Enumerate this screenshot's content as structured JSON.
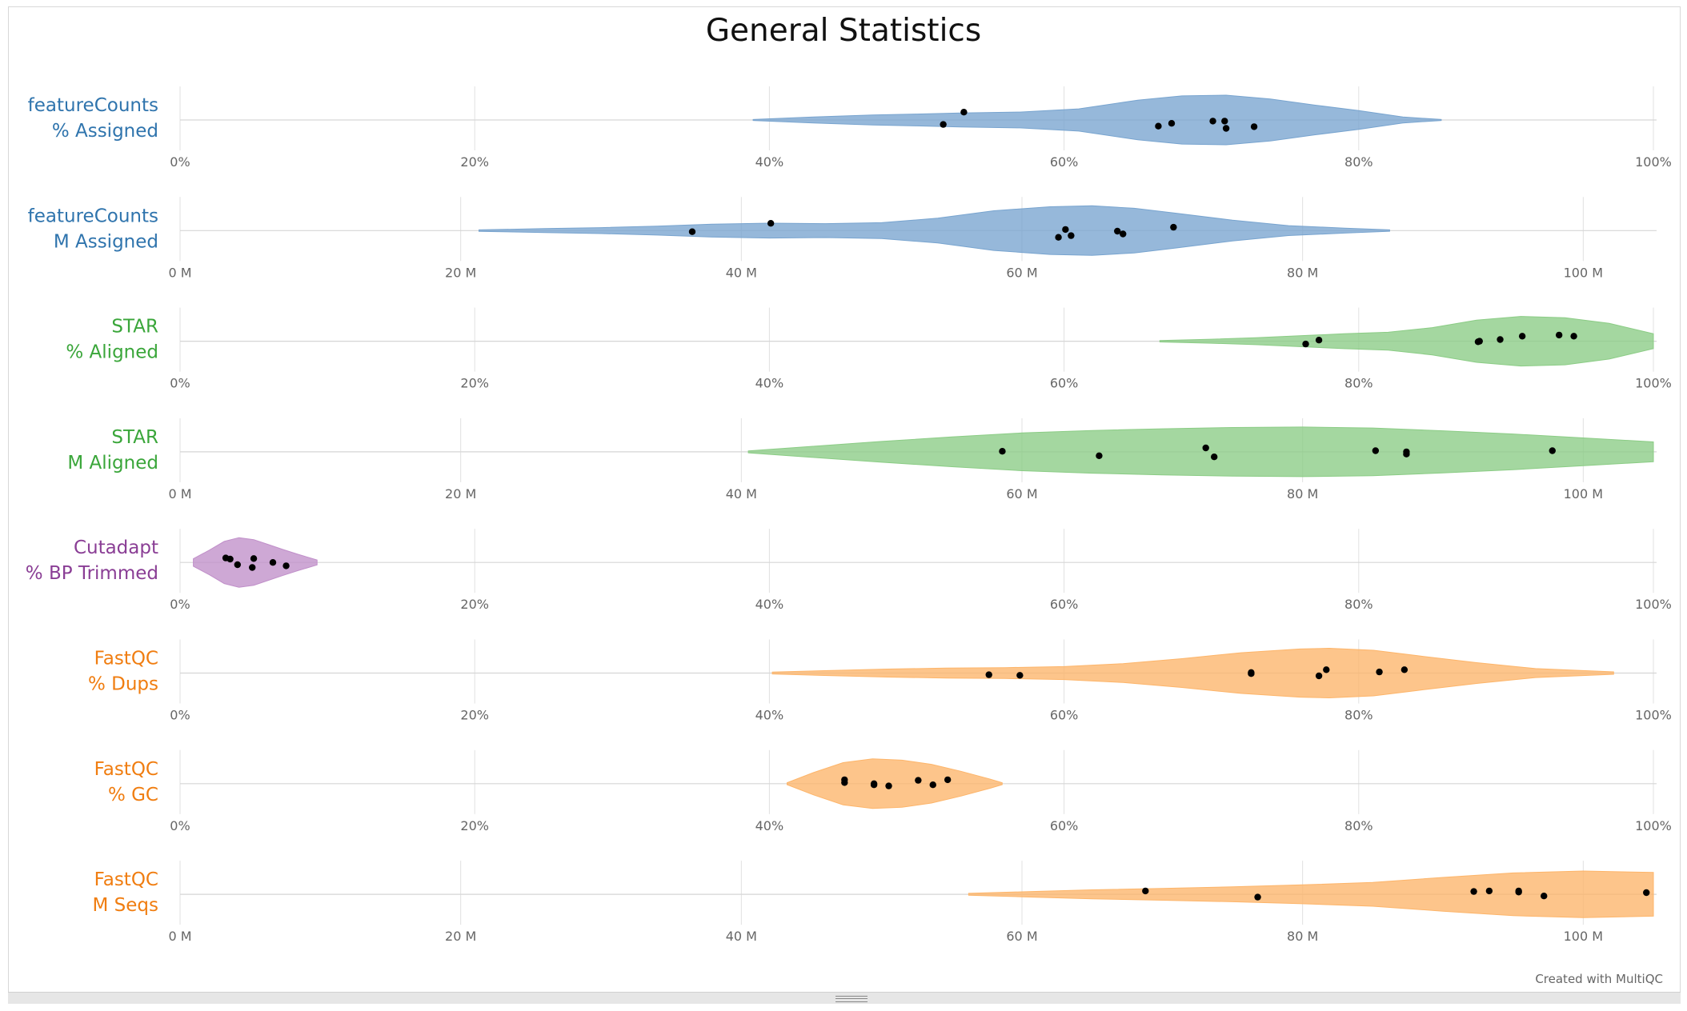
{
  "title": "General Statistics",
  "credit": "Created with MultiQC",
  "chart_data": {
    "type": "violin",
    "title": "General Statistics",
    "rows": [
      {
        "label_line1": "featureCounts",
        "label_line2": "% Assigned",
        "color": "#78a4cf",
        "label_color": "#2f74ad",
        "xlim": [
          0,
          100
        ],
        "tick_values": [
          0,
          20,
          40,
          60,
          80,
          100
        ],
        "tick_labels": [
          "0%",
          "20%",
          "40%",
          "60%",
          "80%",
          "100%"
        ],
        "violin_range": [
          38.9,
          85.6
        ],
        "density": [
          [
            38.9,
            0.02
          ],
          [
            43,
            0.12
          ],
          [
            47,
            0.2
          ],
          [
            50,
            0.24
          ],
          [
            53,
            0.28
          ],
          [
            57,
            0.32
          ],
          [
            61,
            0.45
          ],
          [
            65,
            0.8
          ],
          [
            68,
            0.97
          ],
          [
            71,
            1.0
          ],
          [
            74,
            0.85
          ],
          [
            77,
            0.6
          ],
          [
            80,
            0.38
          ],
          [
            83,
            0.12
          ],
          [
            85.6,
            0.02
          ]
        ],
        "points": [
          [
            51.8,
            -0.4
          ],
          [
            53.2,
            0.7
          ],
          [
            66.4,
            -0.55
          ],
          [
            67.3,
            -0.3
          ],
          [
            70.1,
            -0.1
          ],
          [
            70.9,
            -0.1
          ],
          [
            71,
            -0.75
          ],
          [
            72.9,
            -0.6
          ]
        ]
      },
      {
        "label_line1": "featureCounts",
        "label_line2": "M Assigned",
        "color": "#78a4cf",
        "label_color": "#2f74ad",
        "xlim": [
          0,
          105
        ],
        "tick_values": [
          0,
          20,
          40,
          60,
          80,
          100
        ],
        "tick_labels": [
          "0 M",
          "20 M",
          "40 M",
          "60 M",
          "80 M",
          "100 M"
        ],
        "violin_range": [
          21.3,
          86.2
        ],
        "density": [
          [
            21.3,
            0.03
          ],
          [
            26,
            0.08
          ],
          [
            30,
            0.12
          ],
          [
            34,
            0.18
          ],
          [
            38,
            0.26
          ],
          [
            42,
            0.3
          ],
          [
            46,
            0.28
          ],
          [
            50,
            0.32
          ],
          [
            54,
            0.5
          ],
          [
            58,
            0.8
          ],
          [
            62,
            0.96
          ],
          [
            65,
            1.0
          ],
          [
            68,
            0.9
          ],
          [
            71,
            0.7
          ],
          [
            75,
            0.42
          ],
          [
            79,
            0.2
          ],
          [
            83,
            0.1
          ],
          [
            86.2,
            0.03
          ]
        ],
        "points": [
          [
            36.5,
            -0.1
          ],
          [
            42.1,
            0.65
          ],
          [
            63.1,
            0.1
          ],
          [
            62.6,
            -0.6
          ],
          [
            63.5,
            -0.45
          ],
          [
            66.8,
            -0.05
          ],
          [
            67.2,
            -0.3
          ],
          [
            70.8,
            0.3
          ]
        ]
      },
      {
        "label_line1": "STAR",
        "label_line2": "% Aligned",
        "color": "#8bcc85",
        "label_color": "#3aa63a",
        "xlim": [
          0,
          100
        ],
        "tick_values": [
          0,
          20,
          40,
          60,
          80,
          100
        ],
        "tick_labels": [
          "0%",
          "20%",
          "40%",
          "60%",
          "80%",
          "100%"
        ],
        "violin_range": [
          66.5,
          100.5
        ],
        "density": [
          [
            66.5,
            0.03
          ],
          [
            70,
            0.08
          ],
          [
            73,
            0.14
          ],
          [
            76,
            0.22
          ],
          [
            79,
            0.3
          ],
          [
            82,
            0.36
          ],
          [
            85,
            0.55
          ],
          [
            88,
            0.85
          ],
          [
            91,
            1.0
          ],
          [
            94,
            0.95
          ],
          [
            97,
            0.72
          ],
          [
            100.5,
            0.3
          ]
        ],
        "points": [
          [
            76.4,
            -0.25
          ],
          [
            77.3,
            0.1
          ],
          [
            88.1,
            -0.05
          ],
          [
            88.2,
            0.0
          ],
          [
            89.6,
            0.15
          ],
          [
            91.1,
            0.45
          ],
          [
            93.6,
            0.55
          ],
          [
            94.6,
            0.45
          ]
        ]
      },
      {
        "label_line1": "STAR",
        "label_line2": "M Aligned",
        "color": "#8bcc85",
        "label_color": "#3aa63a",
        "xlim": [
          0,
          105
        ],
        "tick_values": [
          0,
          20,
          40,
          60,
          80,
          100
        ],
        "tick_labels": [
          "0 M",
          "20 M",
          "40 M",
          "60 M",
          "80 M",
          "100 M"
        ],
        "violin_range": [
          40.5,
          105
        ],
        "density": [
          [
            40.5,
            0.04
          ],
          [
            45,
            0.22
          ],
          [
            50,
            0.42
          ],
          [
            55,
            0.6
          ],
          [
            60,
            0.76
          ],
          [
            65,
            0.86
          ],
          [
            70,
            0.93
          ],
          [
            75,
            0.98
          ],
          [
            80,
            1.0
          ],
          [
            85,
            0.96
          ],
          [
            90,
            0.85
          ],
          [
            95,
            0.72
          ],
          [
            100,
            0.56
          ],
          [
            105,
            0.4
          ]
        ],
        "points": [
          [
            58.6,
            0.05
          ],
          [
            65.5,
            -0.35
          ],
          [
            73.1,
            0.35
          ],
          [
            73.7,
            -0.45
          ],
          [
            85.2,
            0.1
          ],
          [
            87.4,
            0.0
          ],
          [
            87.4,
            -0.2
          ],
          [
            97.8,
            0.1
          ]
        ]
      },
      {
        "label_line1": "Cutadapt",
        "label_line2": "% BP Trimmed",
        "color": "#c08fc9",
        "label_color": "#8a3e95",
        "xlim": [
          0,
          100
        ],
        "tick_values": [
          0,
          20,
          40,
          60,
          80,
          100
        ],
        "tick_labels": [
          "0%",
          "20%",
          "40%",
          "60%",
          "80%",
          "100%"
        ],
        "violin_range": [
          0.9,
          9.3
        ],
        "density": [
          [
            0.9,
            0.15
          ],
          [
            2,
            0.5
          ],
          [
            3,
            0.85
          ],
          [
            4,
            1.0
          ],
          [
            5,
            0.92
          ],
          [
            6,
            0.72
          ],
          [
            7,
            0.52
          ],
          [
            8,
            0.33
          ],
          [
            9.3,
            0.1
          ]
        ],
        "points": [
          [
            3.1,
            0.4
          ],
          [
            3.4,
            0.3
          ],
          [
            3.9,
            -0.2
          ],
          [
            4.9,
            -0.45
          ],
          [
            5,
            0.35
          ],
          [
            6.3,
            0.0
          ],
          [
            7.2,
            -0.3
          ]
        ]
      },
      {
        "label_line1": "FastQC",
        "label_line2": "% Dups",
        "color": "#fdb56a",
        "label_color": "#f07d10",
        "xlim": [
          0,
          100
        ],
        "tick_values": [
          0,
          20,
          40,
          60,
          80,
          100
        ],
        "tick_labels": [
          "0%",
          "20%",
          "40%",
          "60%",
          "80%",
          "100%"
        ],
        "violin_range": [
          40.2,
          97.3
        ],
        "density": [
          [
            40.2,
            0.04
          ],
          [
            44,
            0.1
          ],
          [
            48,
            0.16
          ],
          [
            52,
            0.2
          ],
          [
            56,
            0.22
          ],
          [
            60,
            0.26
          ],
          [
            64,
            0.38
          ],
          [
            68,
            0.58
          ],
          [
            72,
            0.82
          ],
          [
            76,
            0.97
          ],
          [
            78,
            1.0
          ],
          [
            81,
            0.92
          ],
          [
            84,
            0.7
          ],
          [
            88,
            0.42
          ],
          [
            92,
            0.18
          ],
          [
            97.3,
            0.05
          ]
        ],
        "points": [
          [
            54.9,
            -0.15
          ],
          [
            57,
            -0.2
          ],
          [
            72.7,
            0.05
          ],
          [
            72.7,
            -0.05
          ],
          [
            77.3,
            -0.25
          ],
          [
            77.8,
            0.3
          ],
          [
            81.4,
            0.1
          ],
          [
            83.1,
            0.3
          ]
        ]
      },
      {
        "label_line1": "FastQC",
        "label_line2": "% GC",
        "color": "#fdb56a",
        "label_color": "#f07d10",
        "xlim": [
          0,
          100
        ],
        "tick_values": [
          0,
          20,
          40,
          60,
          80,
          100
        ],
        "tick_labels": [
          "0%",
          "20%",
          "40%",
          "60%",
          "80%",
          "100%"
        ],
        "violin_range": [
          41.2,
          55.8
        ],
        "density": [
          [
            41.2,
            0.04
          ],
          [
            43,
            0.45
          ],
          [
            45,
            0.85
          ],
          [
            47,
            1.0
          ],
          [
            49,
            0.95
          ],
          [
            51,
            0.78
          ],
          [
            53,
            0.5
          ],
          [
            55,
            0.18
          ],
          [
            55.8,
            0.04
          ]
        ],
        "points": [
          [
            45.1,
            0.35
          ],
          [
            45.1,
            0.1
          ],
          [
            47.1,
            0.0
          ],
          [
            47.1,
            -0.1
          ],
          [
            48.1,
            -0.2
          ],
          [
            50.1,
            0.3
          ],
          [
            51.1,
            -0.1
          ],
          [
            52.1,
            0.35
          ]
        ]
      },
      {
        "label_line1": "FastQC",
        "label_line2": "M Seqs",
        "color": "#fdb56a",
        "label_color": "#f07d10",
        "xlim": [
          0,
          105
        ],
        "tick_values": [
          0,
          20,
          40,
          60,
          80,
          100
        ],
        "tick_labels": [
          "0 M",
          "20 M",
          "40 M",
          "60 M",
          "80 M",
          "100 M"
        ],
        "violin_range": [
          56.2,
          105
        ],
        "density": [
          [
            56.2,
            0.04
          ],
          [
            60,
            0.1
          ],
          [
            65,
            0.18
          ],
          [
            70,
            0.24
          ],
          [
            75,
            0.3
          ],
          [
            80,
            0.38
          ],
          [
            85,
            0.48
          ],
          [
            90,
            0.68
          ],
          [
            95,
            0.86
          ],
          [
            100,
            0.94
          ],
          [
            105,
            0.88
          ]
        ],
        "points": [
          [
            68.8,
            0.3
          ],
          [
            76.8,
            -0.25
          ],
          [
            92.2,
            0.25
          ],
          [
            93.3,
            0.3
          ],
          [
            95.4,
            0.3
          ],
          [
            95.4,
            0.2
          ],
          [
            97.2,
            -0.15
          ],
          [
            104.5,
            0.15
          ]
        ]
      }
    ]
  }
}
